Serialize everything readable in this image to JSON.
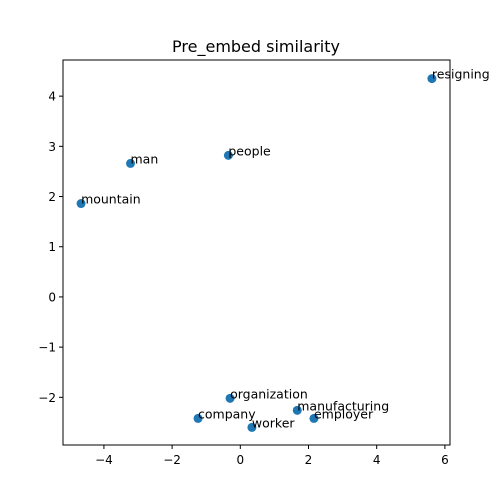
{
  "chart_data": {
    "type": "scatter",
    "title": "Pre_embed similarity",
    "xlabel": "",
    "ylabel": "",
    "xlim": [
      -5.2,
      6.15
    ],
    "ylim": [
      -2.95,
      4.72
    ],
    "xticks": [
      -4,
      -2,
      0,
      2,
      4,
      6
    ],
    "yticks": [
      -2,
      -1,
      0,
      1,
      2,
      3,
      4
    ],
    "point_color": "#1f77b4",
    "grid": false,
    "points": [
      {
        "label": "resigning",
        "x": 5.62,
        "y": 4.35
      },
      {
        "label": "people",
        "x": -0.35,
        "y": 2.82
      },
      {
        "label": "man",
        "x": -3.22,
        "y": 2.66
      },
      {
        "label": "mountain",
        "x": -4.67,
        "y": 1.86
      },
      {
        "label": "organization",
        "x": -0.3,
        "y": -2.02
      },
      {
        "label": "manufacturing",
        "x": 1.67,
        "y": -2.26
      },
      {
        "label": "employer",
        "x": 2.16,
        "y": -2.42
      },
      {
        "label": "company",
        "x": -1.24,
        "y": -2.42
      },
      {
        "label": "worker",
        "x": 0.34,
        "y": -2.6
      }
    ]
  }
}
